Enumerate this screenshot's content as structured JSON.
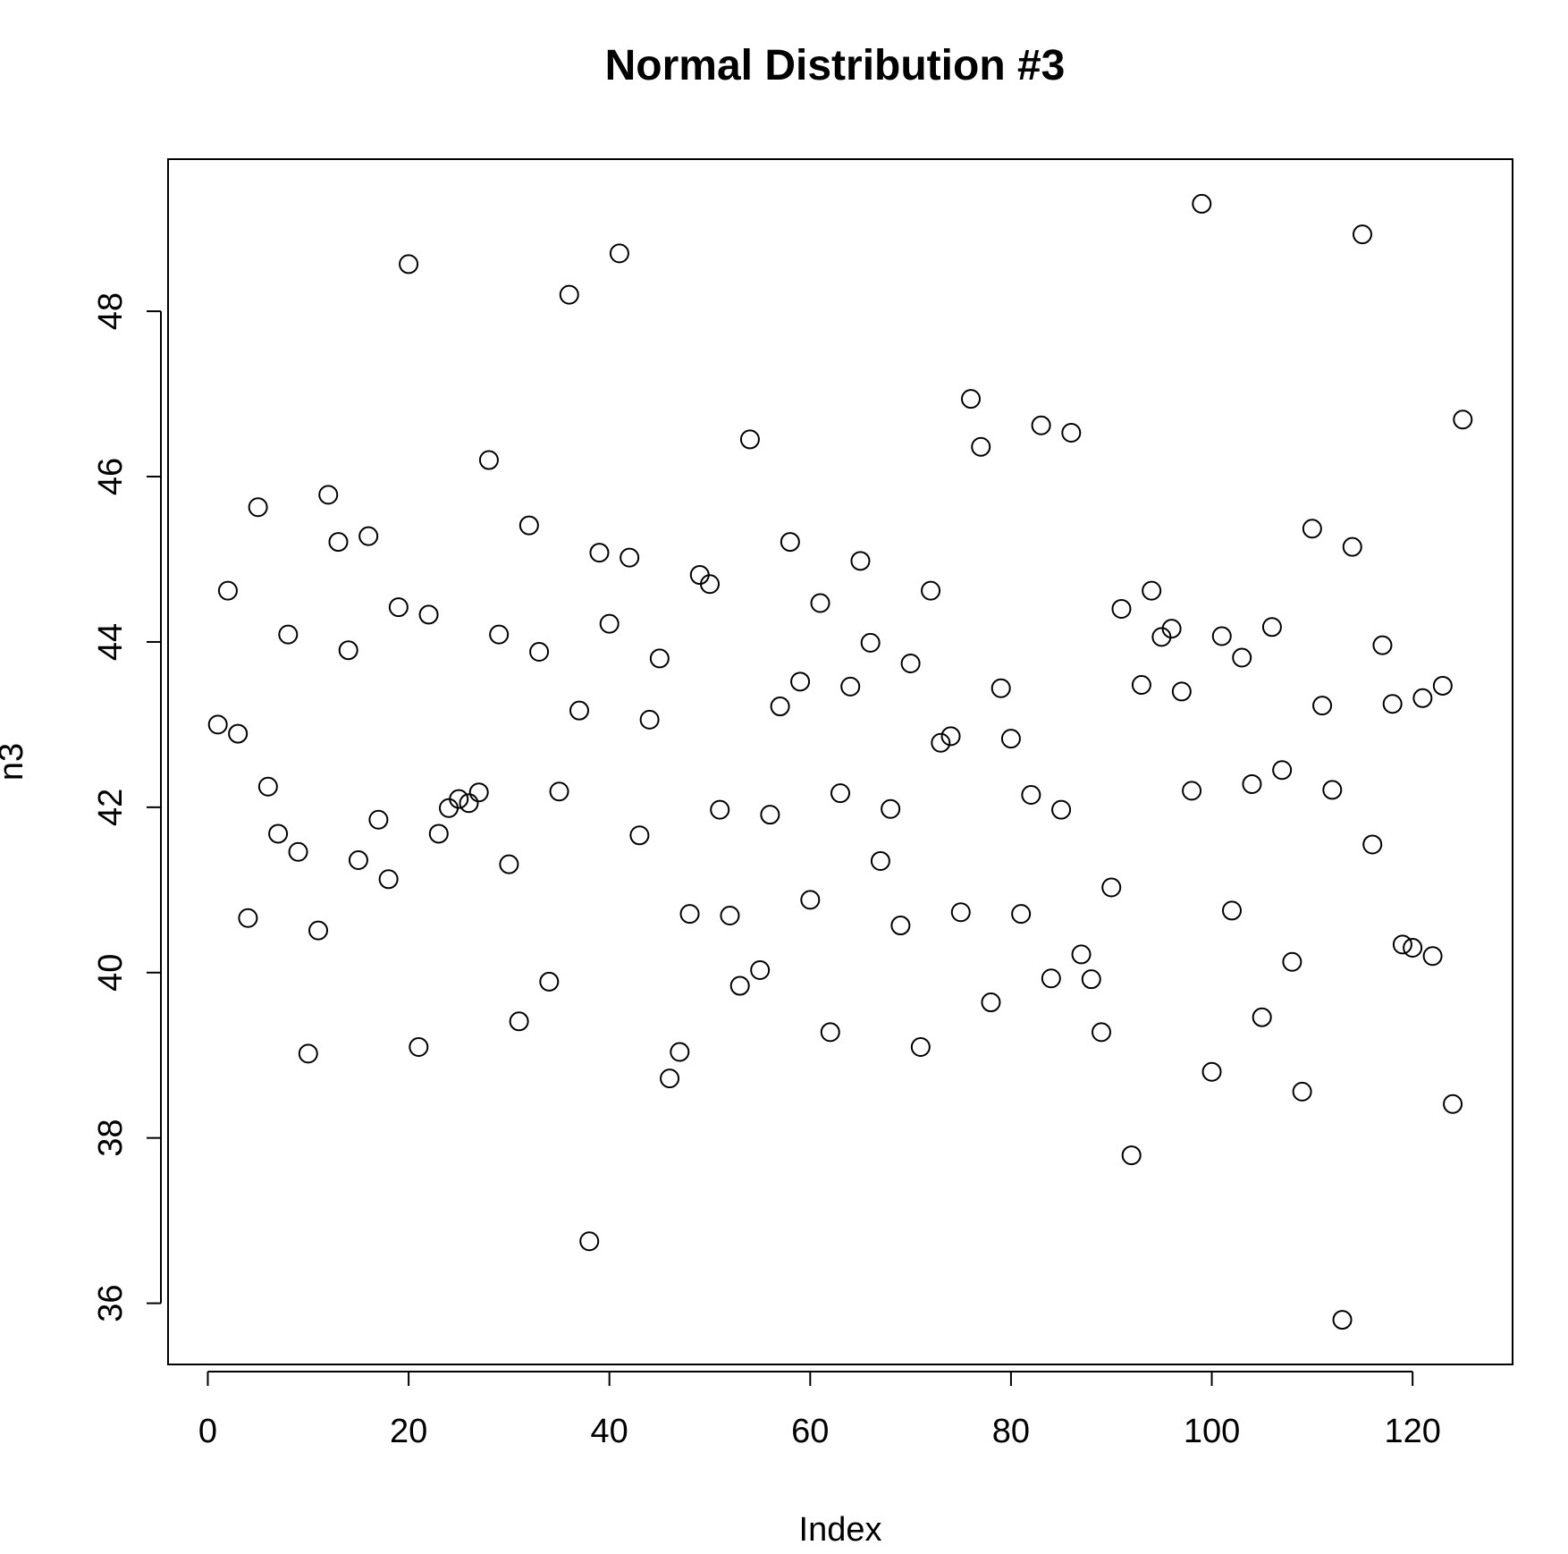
{
  "chart_data": {
    "type": "scatter",
    "title": "Normal Distribution #3",
    "xlabel": "Index",
    "ylabel": "n3",
    "xlim": [
      -3.96,
      129.96
    ],
    "ylim": [
      35.26,
      49.84
    ],
    "xticks": [
      0,
      20,
      40,
      60,
      80,
      100,
      120
    ],
    "yticks": [
      36,
      38,
      40,
      42,
      44,
      46,
      48
    ],
    "grid": false,
    "series": [
      {
        "marker": "open-circle",
        "x": [
          1,
          2,
          3,
          4,
          5,
          6,
          7,
          8,
          9,
          10,
          11,
          12,
          13,
          14,
          15,
          16,
          17,
          18,
          19,
          20,
          21,
          22,
          23,
          24,
          25,
          26,
          27,
          28,
          29,
          30,
          31,
          32,
          33,
          34,
          35,
          36,
          37,
          38,
          39,
          40,
          41,
          42,
          43,
          44,
          45,
          46,
          47,
          48,
          49,
          50,
          51,
          52,
          53,
          54,
          55,
          56,
          57,
          58,
          59,
          60,
          61,
          62,
          63,
          64,
          65,
          66,
          67,
          68,
          69,
          70,
          71,
          72,
          73,
          74,
          75,
          76,
          77,
          78,
          79,
          80,
          81,
          82,
          83,
          84,
          85,
          86,
          87,
          88,
          89,
          90,
          91,
          92,
          93,
          94,
          95,
          96,
          97,
          98,
          99,
          100,
          101,
          102,
          103,
          104,
          105,
          106,
          107,
          108,
          109,
          110,
          111,
          112,
          113,
          114,
          115,
          116,
          117,
          118,
          119,
          120,
          121,
          122,
          123,
          124,
          125
        ],
        "y": [
          43.0,
          44.62,
          42.89,
          40.66,
          45.63,
          42.25,
          41.68,
          44.09,
          41.46,
          39.02,
          40.51,
          45.78,
          45.21,
          43.9,
          41.36,
          45.28,
          41.85,
          41.13,
          44.42,
          48.57,
          39.1,
          44.33,
          41.68,
          41.99,
          42.1,
          42.05,
          42.18,
          46.2,
          44.09,
          41.31,
          39.41,
          45.41,
          43.88,
          39.89,
          42.19,
          48.2,
          43.17,
          36.75,
          45.08,
          44.22,
          48.7,
          45.02,
          41.66,
          43.06,
          43.8,
          38.72,
          39.04,
          40.71,
          44.81,
          44.7,
          41.97,
          40.69,
          39.84,
          46.45,
          40.03,
          41.91,
          43.22,
          45.21,
          43.52,
          40.88,
          44.47,
          39.28,
          42.17,
          43.46,
          44.98,
          43.99,
          41.35,
          41.98,
          40.57,
          43.74,
          39.1,
          44.62,
          42.78,
          42.86,
          40.73,
          46.94,
          46.36,
          39.64,
          43.44,
          42.83,
          40.71,
          42.15,
          46.62,
          39.93,
          41.97,
          46.53,
          40.22,
          39.92,
          39.28,
          41.03,
          44.4,
          37.79,
          43.48,
          44.62,
          44.06,
          44.16,
          43.4,
          42.2,
          49.3,
          38.8,
          44.07,
          40.75,
          43.81,
          42.28,
          39.46,
          44.18,
          42.45,
          40.13,
          38.56,
          45.37,
          43.23,
          42.21,
          35.8,
          45.15,
          48.93,
          41.55,
          43.96,
          43.25,
          40.34,
          40.3,
          43.32,
          40.2,
          43.47,
          38.41,
          46.69
        ]
      }
    ]
  }
}
